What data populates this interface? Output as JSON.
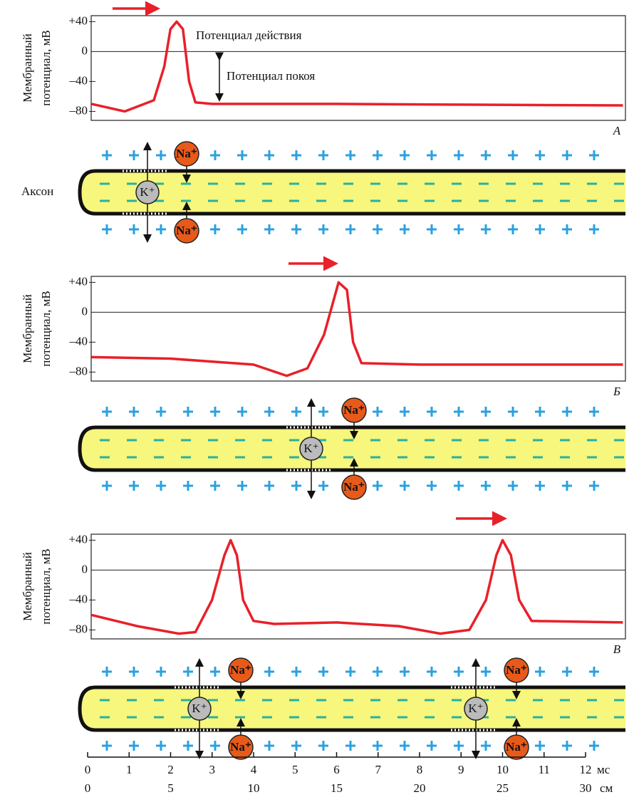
{
  "chart_data": [
    {
      "type": "line",
      "panel": "А",
      "ylabel": [
        "Мембранный",
        "потенциал, мВ"
      ],
      "x": [
        0.1,
        0.9,
        1.6,
        1.85,
        2.0,
        2.15,
        2.3,
        2.45,
        2.6,
        3.0,
        6.0,
        9.0,
        12.9
      ],
      "series": [
        {
          "color": "#e8202a",
          "values": [
            -70,
            -80,
            -65,
            -20,
            30,
            40,
            30,
            -40,
            -68,
            -70,
            -70,
            -71,
            -72
          ]
        }
      ],
      "xlim": [
        0.09,
        12.96
      ],
      "ylim": [
        -92,
        48
      ],
      "yticks": [
        {
          "value": 40,
          "label": "+40"
        },
        0,
        {
          "value": -40,
          "label": "–40"
        },
        {
          "value": -80,
          "label": "–80"
        }
      ],
      "annotations": [
        "Потенциал действия",
        "Потенциал покоя"
      ]
    },
    {
      "type": "line",
      "panel": "Б",
      "ylabel": [
        "Мембранный",
        "потенциал, мВ"
      ],
      "x": [
        0.1,
        2.0,
        4.0,
        4.8,
        5.3,
        5.7,
        5.95,
        6.05,
        6.25,
        6.4,
        6.6,
        8.0,
        12.9
      ],
      "series": [
        {
          "color": "#e8202a",
          "values": [
            -60,
            -62,
            -70,
            -85,
            -75,
            -30,
            20,
            40,
            30,
            -40,
            -68,
            -70,
            -70
          ]
        }
      ],
      "xlim": [
        0.09,
        12.96
      ],
      "ylim": [
        -92,
        48
      ],
      "yticks": [
        {
          "value": 40,
          "label": "+40"
        },
        0,
        {
          "value": -40,
          "label": "–40"
        },
        {
          "value": -80,
          "label": "–80"
        }
      ]
    },
    {
      "type": "line",
      "panel": "В",
      "ylabel": [
        "Мембранный",
        "потенциал, мВ"
      ],
      "x": [
        0.1,
        1.2,
        2.2,
        2.6,
        3.0,
        3.3,
        3.45,
        3.6,
        3.75,
        4.0,
        4.5,
        6.0,
        7.5,
        8.5,
        9.2,
        9.6,
        9.85,
        10.0,
        10.2,
        10.4,
        10.7,
        12.9
      ],
      "series": [
        {
          "color": "#e8202a",
          "values": [
            -60,
            -75,
            -85,
            -83,
            -40,
            20,
            40,
            20,
            -40,
            -68,
            -72,
            -70,
            -75,
            -85,
            -80,
            -40,
            20,
            40,
            20,
            -40,
            -68,
            -70
          ]
        }
      ],
      "xlim": [
        0.09,
        12.96
      ],
      "ylim": [
        -92,
        48
      ],
      "yticks": [
        {
          "value": 40,
          "label": "+40"
        },
        0,
        {
          "value": -40,
          "label": "–40"
        },
        {
          "value": -80,
          "label": "–80"
        }
      ]
    }
  ],
  "axons": [
    {
      "label": "Аксон",
      "k": [
        "K⁺"
      ],
      "na": [
        "Na⁺",
        "Na⁺"
      ]
    },
    {
      "k": [
        "K⁺"
      ],
      "na": [
        "Na⁺",
        "Na⁺"
      ]
    },
    {
      "k": [
        "K⁺",
        "K⁺"
      ],
      "na": [
        "Na⁺",
        "Na⁺",
        "Na⁺",
        "Na⁺"
      ]
    }
  ],
  "scale": {
    "time_unit": "мс",
    "time_ticks": [
      0,
      1,
      2,
      3,
      4,
      5,
      6,
      7,
      8,
      9,
      10,
      11,
      12
    ],
    "distance_unit": "см",
    "distance_ticks": [
      0,
      5,
      10,
      15,
      20,
      25,
      30
    ]
  }
}
